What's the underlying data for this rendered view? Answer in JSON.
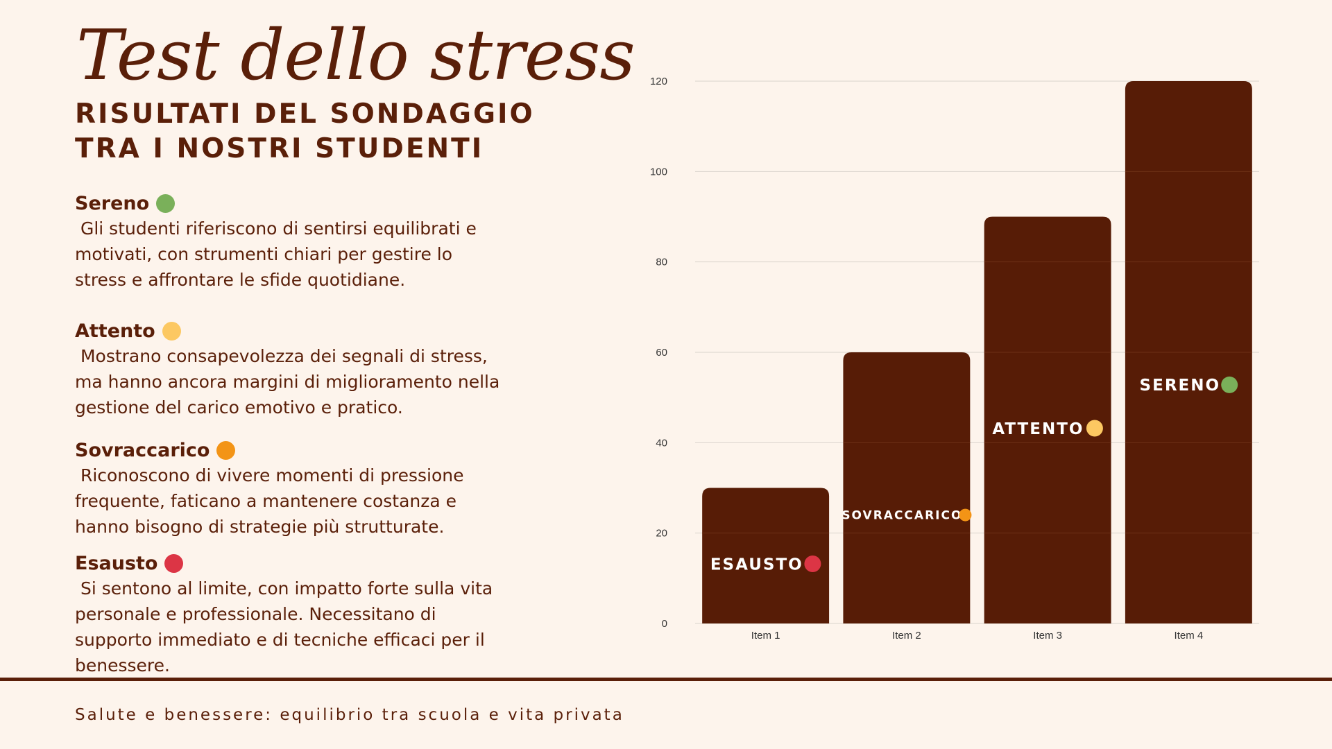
{
  "header": {
    "title": "Test dello stress",
    "subtitle_line1": "RISULTATI DEL SONDAGGIO",
    "subtitle_line2": "TRA I NOSTRI STUDENTI"
  },
  "legend_items": [
    {
      "name": "Sereno",
      "color": "#7ab05a",
      "description": " Gli studenti riferiscono di sentirsi equilibrati e\nmotivati, con strumenti chiari per gestire lo\nstress e affrontare le sfide quotidiane."
    },
    {
      "name": "Attento",
      "color": "#fcc862",
      "description": " Mostrano consapevolezza dei segnali di stress,\nma hanno ancora margini di miglioramento nella\ngestione del carico emotivo e pratico."
    },
    {
      "name": "Sovraccarico",
      "color": "#f39416",
      "description": " Riconoscono di vivere momenti di pressione\nfrequente, faticano a mantenere costanza e\nhanno bisogno di strategie più strutturate."
    },
    {
      "name": "Esausto",
      "color": "#dc3545",
      "description": " Si sentono al limite, con impatto forte sulla vita\npersonale e professionale. Necessitano di\nsupporto immediato e di tecniche efficaci per il\nbenessere."
    }
  ],
  "footer": {
    "text": "Salute e benessere: equilibrio tra scuola e vita privata"
  },
  "chart_data": {
    "type": "bar",
    "categories": [
      "Item 1",
      "Item 2",
      "Item 3",
      "Item 4"
    ],
    "values": [
      30,
      60,
      90,
      120
    ],
    "ylim": [
      0,
      120
    ],
    "yticks": [
      "0",
      "20",
      "40",
      "60",
      "80",
      "100",
      "120"
    ],
    "grid": true,
    "bar_color": "#571c06",
    "bar_labels": [
      {
        "text": "ESAUSTO",
        "dot_color": "#dc3545"
      },
      {
        "text": "SOVRACCARICO",
        "dot_color": "#f39416"
      },
      {
        "text": "ATTENTO",
        "dot_color": "#fcc862"
      },
      {
        "text": "SERENO",
        "dot_color": "#7ab05a"
      }
    ]
  }
}
